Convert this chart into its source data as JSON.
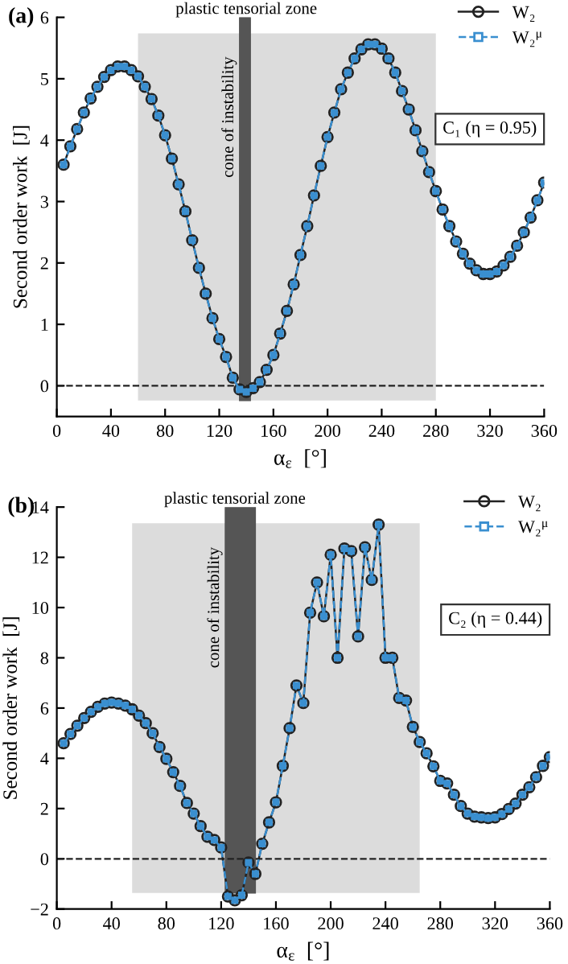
{
  "chart_data": [
    {
      "type": "line",
      "title": "(a)",
      "xlabel": "α$_{ε}$  [°]",
      "ylabel": "Second order work  [J]",
      "x": [
        5,
        10,
        15,
        20,
        25,
        30,
        35,
        40,
        45,
        50,
        55,
        60,
        65,
        70,
        75,
        80,
        85,
        90,
        95,
        100,
        105,
        110,
        115,
        120,
        125,
        130,
        135,
        140,
        145,
        150,
        155,
        160,
        165,
        170,
        175,
        180,
        185,
        190,
        195,
        200,
        205,
        210,
        215,
        220,
        225,
        230,
        235,
        240,
        245,
        250,
        255,
        260,
        265,
        270,
        275,
        280,
        285,
        290,
        295,
        300,
        305,
        310,
        315,
        320,
        325,
        330,
        335,
        340,
        345,
        350,
        355,
        360
      ],
      "series": [
        {
          "name": "W₂",
          "color": "#222222",
          "marker": "circle",
          "line_style": "solid",
          "values": [
            3.6,
            3.9,
            4.18,
            4.45,
            4.68,
            4.87,
            5.03,
            5.14,
            5.2,
            5.2,
            5.14,
            5.04,
            4.87,
            4.67,
            4.4,
            4.08,
            3.7,
            3.28,
            2.84,
            2.37,
            1.92,
            1.5,
            1.1,
            0.76,
            0.47,
            0.13,
            -0.06,
            -0.1,
            -0.04,
            0.06,
            0.26,
            0.5,
            0.85,
            1.22,
            1.65,
            2.13,
            2.6,
            3.1,
            3.58,
            4.05,
            4.45,
            4.83,
            5.1,
            5.33,
            5.48,
            5.56,
            5.56,
            5.49,
            5.33,
            5.1,
            4.8,
            4.5,
            4.16,
            3.82,
            3.48,
            3.17,
            2.87,
            2.6,
            2.35,
            2.15,
            1.99,
            1.88,
            1.82,
            1.82,
            1.86,
            1.96,
            2.1,
            2.28,
            2.5,
            2.74,
            3.02,
            3.31
          ]
        },
        {
          "name": "W₂$^{μ}$",
          "color": "#3a8fd0",
          "marker": "square",
          "line_style": "dashed",
          "values": [
            3.6,
            3.9,
            4.18,
            4.45,
            4.68,
            4.87,
            5.03,
            5.14,
            5.2,
            5.2,
            5.14,
            5.04,
            4.87,
            4.67,
            4.4,
            4.08,
            3.7,
            3.28,
            2.84,
            2.37,
            1.92,
            1.5,
            1.1,
            0.76,
            0.47,
            0.13,
            -0.06,
            -0.1,
            -0.04,
            0.06,
            0.26,
            0.5,
            0.85,
            1.22,
            1.65,
            2.13,
            2.6,
            3.1,
            3.58,
            4.05,
            4.45,
            4.83,
            5.1,
            5.33,
            5.48,
            5.56,
            5.56,
            5.49,
            5.33,
            5.1,
            4.8,
            4.5,
            4.16,
            3.82,
            3.48,
            3.17,
            2.87,
            2.6,
            2.35,
            2.15,
            1.99,
            1.88,
            1.82,
            1.82,
            1.86,
            1.96,
            2.1,
            2.28,
            2.5,
            2.74,
            3.02,
            3.31
          ]
        }
      ],
      "xlim": [
        0,
        360
      ],
      "xticks": [
        0,
        40,
        80,
        120,
        160,
        200,
        240,
        280,
        320,
        360
      ],
      "ylim": [
        -0.5,
        6
      ],
      "yticks": [
        0,
        1,
        2,
        3,
        4,
        5,
        6
      ],
      "bands": [
        {
          "axis": "x",
          "from": 60,
          "to": 280,
          "label": "plastic tensorial zone",
          "color": "#dcdcdc"
        },
        {
          "axis": "x",
          "from": 135,
          "to": 143,
          "label": "cone of instability",
          "color": "#555555"
        }
      ],
      "ref_lines": [
        {
          "axis": "y",
          "value": 0,
          "color": "#222222",
          "line_style": "dashed"
        }
      ],
      "annotations": [
        "C₁ (η = 0.95)"
      ],
      "legend": "top right",
      "grid": false
    },
    {
      "type": "line",
      "title": "(b)",
      "xlabel": "α$_{ε}$  [°]",
      "ylabel": "Second order work  [J]",
      "x": [
        5,
        10,
        15,
        20,
        25,
        30,
        35,
        40,
        45,
        50,
        55,
        60,
        65,
        70,
        75,
        80,
        85,
        90,
        95,
        100,
        105,
        110,
        115,
        120,
        125,
        130,
        135,
        140,
        145,
        150,
        155,
        160,
        165,
        170,
        175,
        180,
        185,
        190,
        195,
        200,
        205,
        210,
        215,
        220,
        225,
        230,
        235,
        240,
        245,
        250,
        255,
        260,
        265,
        270,
        275,
        280,
        285,
        290,
        295,
        300,
        305,
        310,
        315,
        320,
        325,
        330,
        335,
        340,
        345,
        350,
        355,
        360
      ],
      "series": [
        {
          "name": "W₂",
          "color": "#222222",
          "marker": "circle",
          "line_style": "solid",
          "values": [
            4.6,
            4.97,
            5.3,
            5.6,
            5.85,
            6.05,
            6.18,
            6.22,
            6.18,
            6.1,
            5.95,
            5.7,
            5.4,
            5.0,
            4.45,
            3.98,
            3.45,
            2.9,
            2.22,
            1.8,
            1.3,
            0.88,
            0.75,
            0.45,
            -1.5,
            -1.65,
            -1.45,
            -0.15,
            -0.6,
            0.6,
            1.45,
            2.25,
            3.7,
            5.2,
            6.9,
            6.2,
            9.8,
            11.0,
            9.65,
            12.1,
            8.0,
            12.35,
            12.25,
            8.85,
            12.4,
            11.1,
            13.3,
            8.0,
            8.0,
            6.4,
            6.3,
            5.25,
            4.65,
            4.2,
            3.68,
            3.1,
            3.0,
            2.55,
            2.1,
            1.8,
            1.68,
            1.65,
            1.62,
            1.65,
            1.78,
            1.98,
            2.2,
            2.55,
            2.85,
            3.25,
            3.7,
            4.05
          ]
        },
        {
          "name": "W₂$^{μ}$",
          "color": "#3a8fd0",
          "marker": "square",
          "line_style": "dashed",
          "values": [
            4.6,
            4.97,
            5.3,
            5.6,
            5.85,
            6.05,
            6.18,
            6.22,
            6.18,
            6.1,
            5.95,
            5.7,
            5.4,
            5.0,
            4.45,
            3.98,
            3.45,
            2.9,
            2.22,
            1.8,
            1.3,
            0.88,
            0.75,
            0.45,
            -1.5,
            -1.65,
            -1.45,
            -0.15,
            -0.6,
            0.6,
            1.45,
            2.25,
            3.7,
            5.2,
            6.9,
            6.2,
            9.8,
            11.0,
            9.65,
            12.1,
            8.0,
            12.35,
            12.25,
            8.85,
            12.4,
            11.1,
            13.3,
            8.0,
            8.0,
            6.4,
            6.3,
            5.25,
            4.65,
            4.2,
            3.68,
            3.1,
            3.0,
            2.55,
            2.1,
            1.8,
            1.68,
            1.65,
            1.62,
            1.65,
            1.78,
            1.98,
            2.2,
            2.55,
            2.85,
            3.25,
            3.7,
            4.05
          ]
        }
      ],
      "xlim": [
        0,
        360
      ],
      "xticks": [
        0,
        40,
        80,
        120,
        160,
        200,
        240,
        280,
        320,
        360
      ],
      "ylim": [
        -2,
        14
      ],
      "yticks": [
        {
          "value": -2,
          "label": "−2"
        },
        0,
        2,
        4,
        6,
        8,
        10,
        12,
        14
      ],
      "bands": [
        {
          "axis": "x",
          "from": 55,
          "to": 265,
          "label": "plastic tensorial zone",
          "color": "#dcdcdc"
        },
        {
          "axis": "x",
          "from": 123,
          "to": 145,
          "label": "cone of instability",
          "color": "#555555"
        }
      ],
      "ref_lines": [
        {
          "axis": "y",
          "value": 0,
          "color": "#222222",
          "line_style": "dashed"
        }
      ],
      "annotations": [
        "C₂ (η = 0.44)"
      ],
      "legend": "top right",
      "grid": false
    }
  ]
}
